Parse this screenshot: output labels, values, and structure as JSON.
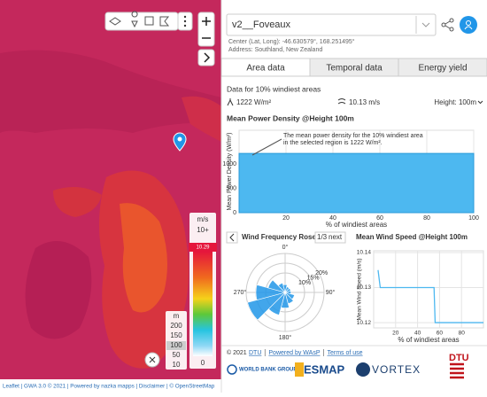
{
  "legend": {
    "unit": "m/s",
    "max_label": "10+",
    "marker": "10.29",
    "min_label": "0"
  },
  "height_legend": {
    "unit": "m",
    "values": [
      200,
      150,
      100,
      50,
      10
    ],
    "selected": 100
  },
  "map_footer": "Leaflet | GWA 3.0 © 2021 | Powered by nazka mapps | Disclaimer | © OpenStreetMap",
  "panel": {
    "site": "v2__Foveaux",
    "center": "Center (Lat, Long): -46.630579°, 168.251495°",
    "address": "Address: Southland, New Zealand",
    "tabs": [
      "Area data",
      "Temporal data",
      "Energy yield"
    ],
    "active_tab": 0
  },
  "area_data": {
    "heading": "Data for 10% windiest areas",
    "power_density": "1222 W/m²",
    "wind_speed": "10.13 m/s",
    "height": "Height: 100m"
  },
  "power_chart": {
    "type": "area",
    "title": "Mean Power Density @Height 100m",
    "annotation": [
      "The mean power density for the 10% windiest area",
      "in the selected region is 1222 W/m²."
    ],
    "ylabel": "Mean Power Density (W/m²)",
    "xlabel": "% of windiest areas",
    "xlim": [
      0,
      100
    ],
    "ylim": [
      0,
      1700
    ],
    "xticks": [
      20,
      40,
      60,
      80,
      100
    ],
    "yticks": [
      0,
      500,
      1000
    ],
    "x": [
      0,
      100
    ],
    "values": [
      1222,
      1222
    ],
    "color": "#4db8f0"
  },
  "rose": {
    "type": "polar",
    "title": "Wind Frequency Rose",
    "page": "1/3",
    "next": "next",
    "directions": [
      {
        "value": 0,
        "label": "0°"
      },
      {
        "value": 90,
        "label": "90°"
      },
      {
        "value": 180,
        "label": "180°"
      },
      {
        "value": 270,
        "label": "270°"
      }
    ],
    "rings": [
      {
        "value": 10,
        "label": "10%"
      },
      {
        "value": 15,
        "label": "15%"
      },
      {
        "value": 20,
        "label": "20%"
      }
    ],
    "sectors": [
      4,
      3,
      3,
      3,
      5,
      6,
      8,
      12,
      20,
      15,
      9,
      5
    ],
    "color": "#2196e8"
  },
  "speed_chart": {
    "type": "line",
    "title": "Mean Wind Speed @Height 100m",
    "ylabel": "Mean Wind Speed (m/s)",
    "xlabel": "% of windiest areas",
    "xlim": [
      0,
      100
    ],
    "ylim": [
      10.1185,
      10.1405
    ],
    "xticks": [
      20,
      40,
      60,
      80
    ],
    "yticks": [
      10.12,
      10.13,
      10.14
    ],
    "x": [
      4,
      6,
      55,
      56,
      100
    ],
    "values": [
      10.135,
      10.13,
      10.13,
      10.12,
      10.12
    ],
    "color": "#4db8f0"
  },
  "footer": {
    "copyright": "© 2021",
    "links": [
      "DTU",
      "Powered by WAsP",
      "Terms of use"
    ],
    "logos": [
      "WORLD BANK GROUP",
      "ESMAP",
      "VORTEX",
      "DTU"
    ]
  }
}
